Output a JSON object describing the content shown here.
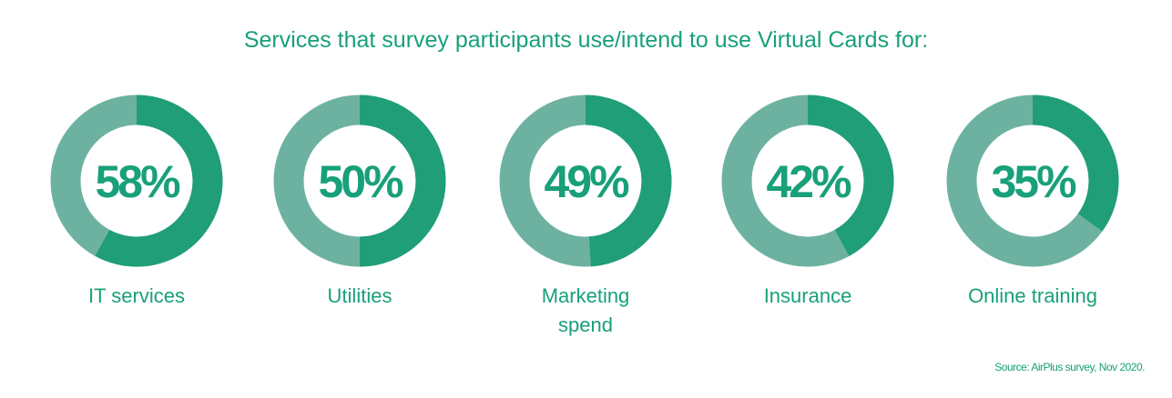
{
  "chart_data": {
    "type": "pie",
    "title": "Services that survey participants use/intend to use Virtual Cards for:",
    "unit": "%",
    "categories": [
      "IT services",
      "Utilities",
      "Marketing\nspend",
      "Insurance",
      "Online training"
    ],
    "values": [
      58,
      50,
      49,
      42,
      35
    ],
    "labels": [
      "58%",
      "50%",
      "49%",
      "42%",
      "35%"
    ],
    "colors": {
      "value": "#1f9e78",
      "remainder": "#6db2a1",
      "text": "#18a07a"
    }
  },
  "source": "Source: AirPlus survey, Nov 2020."
}
